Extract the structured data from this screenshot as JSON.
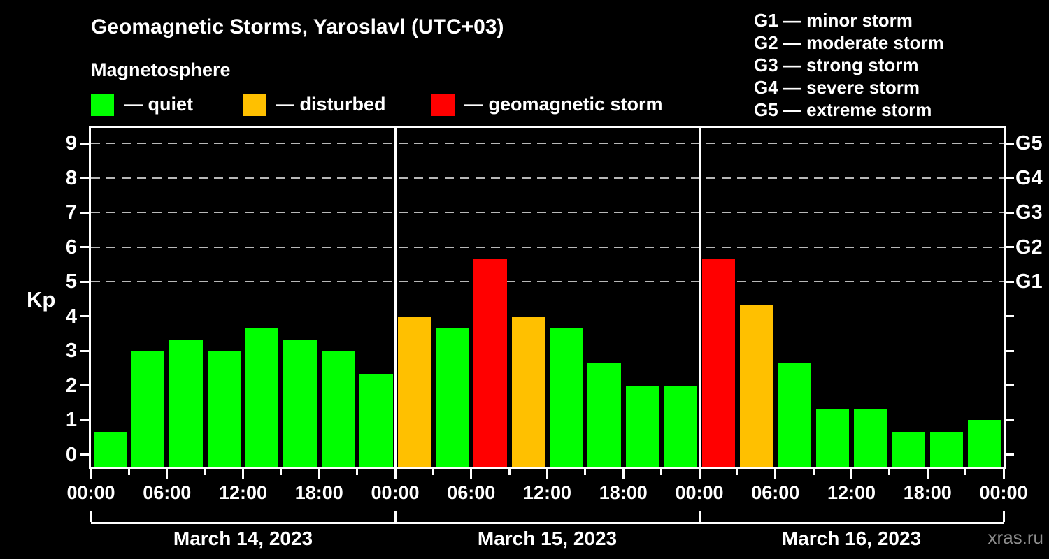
{
  "title": "Geomagnetic Storms, Yaroslavl (UTC+03)",
  "subtitle": "Magnetosphere",
  "legend": {
    "items": [
      {
        "key": "quiet",
        "label": "— quiet"
      },
      {
        "key": "disturbed",
        "label": "— disturbed"
      },
      {
        "key": "storm",
        "label": "— geomagnetic storm"
      }
    ]
  },
  "storm_scale_legend": [
    "G1 — minor storm",
    "G2 — moderate storm",
    "G3 — strong storm",
    "G4 — severe storm",
    "G5 — extreme storm"
  ],
  "watermark": "xras.ru",
  "chart_data": {
    "type": "bar",
    "title": "Geomagnetic Storms, Yaroslavl (UTC+03)",
    "subtitle": "Magnetosphere",
    "xlabel": "",
    "ylabel": "Kp",
    "ylim": [
      0,
      9
    ],
    "y_ticks": [
      0,
      1,
      2,
      3,
      4,
      5,
      6,
      7,
      8,
      9
    ],
    "gridlines_at": [
      5,
      6,
      7,
      8,
      9
    ],
    "grid": "dashed horizontal at Kp 5-9",
    "legend_position": "top",
    "right_axis_labels": [
      {
        "value": 5,
        "label": "G1"
      },
      {
        "value": 6,
        "label": "G2"
      },
      {
        "value": 7,
        "label": "G3"
      },
      {
        "value": 8,
        "label": "G4"
      },
      {
        "value": 9,
        "label": "G5"
      }
    ],
    "bar_interval_hours": 3,
    "x_tick_labels": [
      "00:00",
      "06:00",
      "12:00",
      "18:00",
      "00:00",
      "06:00",
      "12:00",
      "18:00",
      "00:00",
      "06:00",
      "12:00",
      "18:00",
      "00:00"
    ],
    "colors": {
      "quiet": "#00ff00",
      "disturbed": "#ffc000",
      "storm": "#ff0000"
    },
    "days": [
      {
        "date": "March 14, 2023",
        "values": [
          0.67,
          3.0,
          3.33,
          3.0,
          3.67,
          3.33,
          3.0,
          2.33
        ],
        "status": [
          "quiet",
          "quiet",
          "quiet",
          "quiet",
          "quiet",
          "quiet",
          "quiet",
          "quiet"
        ]
      },
      {
        "date": "March 15, 2023",
        "values": [
          4.0,
          3.67,
          5.67,
          4.0,
          3.67,
          2.67,
          2.0,
          2.0
        ],
        "status": [
          "disturbed",
          "quiet",
          "storm",
          "disturbed",
          "quiet",
          "quiet",
          "quiet",
          "quiet"
        ]
      },
      {
        "date": "March 16, 2023",
        "values": [
          5.67,
          4.33,
          2.67,
          1.33,
          1.33,
          0.67,
          0.67,
          1.0
        ],
        "status": [
          "storm",
          "disturbed",
          "quiet",
          "quiet",
          "quiet",
          "quiet",
          "quiet",
          "quiet"
        ]
      }
    ]
  }
}
